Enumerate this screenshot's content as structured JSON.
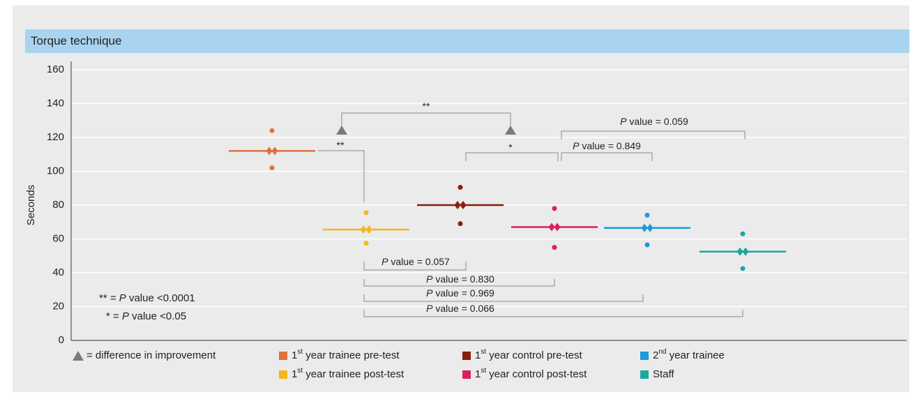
{
  "chart_data": {
    "type": "dot",
    "title": "Torque technique",
    "y_label": "Seconds",
    "ylim": [
      0,
      160
    ],
    "yticks": [
      0,
      20,
      40,
      60,
      80,
      100,
      120,
      140,
      160
    ],
    "grid": true,
    "series": [
      {
        "name": "1st year trainee pre-test",
        "color": "#e0703f",
        "mean": 112,
        "high": 124,
        "low": 102
      },
      {
        "name": "1st year trainee post-test",
        "color": "#f6b61c",
        "mean": 65.5,
        "high": 75.5,
        "low": 57.5
      },
      {
        "name": "1st year control pre-test",
        "color": "#8a1d0c",
        "mean": 80,
        "high": 90.5,
        "low": 69
      },
      {
        "name": "1st year control post-test",
        "color": "#d81f5f",
        "mean": 67,
        "high": 78,
        "low": 55
      },
      {
        "name": "2nd year trainee",
        "color": "#1d9bd7",
        "mean": 66.5,
        "high": 74,
        "low": 56.5
      },
      {
        "name": "Staff",
        "color": "#1ba89c",
        "mean": 52.5,
        "high": 63,
        "low": 42.5
      }
    ],
    "annotations": [
      "**",
      "**",
      "*",
      "P value = 0.849",
      "P value = 0.059",
      "P value = 0.057",
      "P value = 0.830",
      "P value = 0.969",
      "P value = 0.066"
    ],
    "triangle_legend": "= difference in improvement",
    "key": [
      "** = P value <0.0001",
      "* = P value <0.05"
    ]
  }
}
